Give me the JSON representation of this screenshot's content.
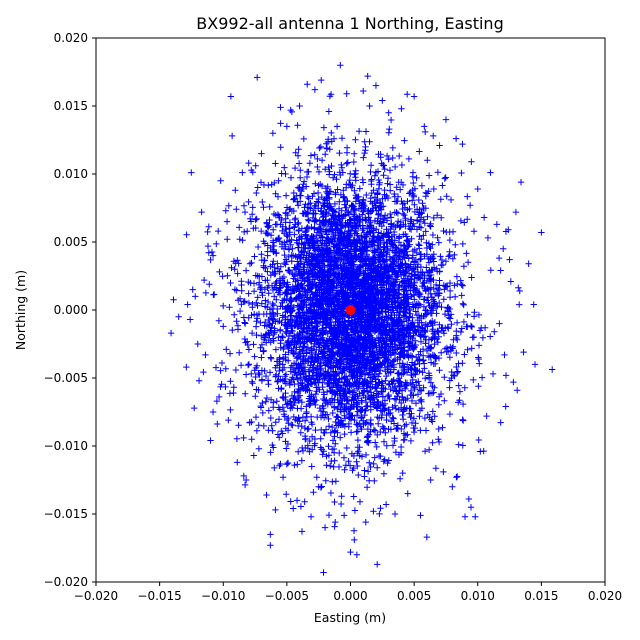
{
  "chart_data": {
    "type": "scatter",
    "title": "BX992-all antenna 1 Northing, Easting",
    "xlabel": "Easting (m)",
    "ylabel": "Northing (m)",
    "xlim": [
      -0.02,
      0.02
    ],
    "ylim": [
      -0.02,
      0.02
    ],
    "xticks": [
      -0.02,
      -0.015,
      -0.01,
      -0.005,
      0.0,
      0.005,
      0.01,
      0.015,
      0.02
    ],
    "yticks": [
      -0.02,
      -0.015,
      -0.01,
      -0.005,
      0.0,
      0.005,
      0.01,
      0.015,
      0.02
    ],
    "xtick_labels": [
      "−0.020",
      "−0.015",
      "−0.010",
      "−0.005",
      "0.000",
      "0.005",
      "0.010",
      "0.015",
      "0.020"
    ],
    "ytick_labels": [
      "−0.020",
      "−0.015",
      "−0.010",
      "−0.005",
      "0.000",
      "0.005",
      "0.010",
      "0.015",
      "0.020"
    ],
    "grid": false,
    "series": [
      {
        "marker": "+",
        "color": "#0000ff",
        "points": [
          [
            -0.0141,
            -0.0017
          ],
          [
            -0.0129,
            -0.0042
          ],
          [
            -0.0128,
            0.0004
          ],
          [
            -0.0124,
            0.0015
          ],
          [
            -0.012,
            -0.0025
          ],
          [
            -0.0117,
            0.0072
          ],
          [
            -0.0115,
            0.0022
          ],
          [
            -0.0114,
            -0.0033
          ],
          [
            -0.011,
            -0.0096
          ],
          [
            -0.0108,
            0.004
          ],
          [
            -0.0105,
            -0.0067
          ],
          [
            -0.0104,
            0.0058
          ],
          [
            -0.0102,
            0.0095
          ],
          [
            -0.01,
            -0.0012
          ],
          [
            -0.0098,
            0.0073
          ],
          [
            -0.0097,
            0.0065
          ],
          [
            -0.0096,
            -0.0081
          ],
          [
            -0.0093,
            0.0128
          ],
          [
            -0.0091,
            0.003
          ],
          [
            -0.0089,
            -0.0112
          ],
          [
            -0.0085,
            0.0101
          ],
          [
            -0.0082,
            -0.0125
          ],
          [
            -0.008,
            0.0108
          ],
          [
            -0.0078,
            -0.0047
          ],
          [
            -0.0074,
            0.0086
          ],
          [
            -0.0072,
            -0.0102
          ],
          [
            -0.007,
            0.0115
          ],
          [
            -0.0066,
            -0.0136
          ],
          [
            -0.0063,
            -0.0165
          ],
          [
            -0.0063,
            -0.0173
          ],
          [
            -0.0061,
            0.013
          ],
          [
            -0.0059,
            -0.0147
          ],
          [
            -0.0055,
            0.0149
          ],
          [
            -0.0053,
            -0.0123
          ],
          [
            -0.005,
            0.0135
          ],
          [
            -0.0047,
            0.0147
          ],
          [
            -0.0045,
            -0.0146
          ],
          [
            -0.0042,
            -0.014
          ],
          [
            -0.004,
            0.015
          ],
          [
            -0.0036,
            -0.0141
          ],
          [
            -0.0034,
            0.0166
          ],
          [
            -0.0031,
            -0.0152
          ],
          [
            -0.0028,
            0.0162
          ],
          [
            -0.0025,
            -0.013
          ],
          [
            -0.0023,
            0.0169
          ],
          [
            -0.002,
            -0.016
          ],
          [
            -0.0017,
            0.0146
          ],
          [
            -0.0012,
            -0.0156
          ],
          [
            -0.0008,
            0.018
          ],
          [
            -0.0005,
            -0.0151
          ],
          [
            -0.0003,
            0.0159
          ],
          [
            0.0,
            -0.0178
          ],
          [
            0.0003,
            -0.0169
          ],
          [
            0.0005,
            -0.018
          ],
          [
            0.001,
            0.0161
          ],
          [
            0.0012,
            -0.0156
          ],
          [
            0.0015,
            0.015
          ],
          [
            0.0018,
            -0.0148
          ],
          [
            0.002,
            0.0165
          ],
          [
            0.0021,
            -0.0187
          ],
          [
            0.0025,
            0.0154
          ],
          [
            0.0028,
            -0.0143
          ],
          [
            0.003,
            0.0145
          ],
          [
            0.0035,
            -0.015
          ],
          [
            0.004,
            0.0148
          ],
          [
            0.0045,
            -0.0135
          ],
          [
            0.005,
            0.0157
          ],
          [
            0.0055,
            -0.0151
          ],
          [
            0.0058,
            0.0135
          ],
          [
            0.006,
            -0.0167
          ],
          [
            0.0063,
            -0.0125
          ],
          [
            0.0065,
            0.0128
          ],
          [
            0.007,
            0.0121
          ],
          [
            0.0073,
            -0.0119
          ],
          [
            0.0075,
            0.014
          ],
          [
            0.008,
            -0.013
          ],
          [
            0.0083,
            0.0126
          ],
          [
            0.0085,
            -0.0099
          ],
          [
            0.0088,
            0.0122
          ],
          [
            0.009,
            -0.0152
          ],
          [
            0.0093,
            -0.0139
          ],
          [
            0.0095,
            0.0109
          ],
          [
            0.0098,
            -0.0152
          ],
          [
            0.01,
            0.0089
          ],
          [
            0.0102,
            -0.0104
          ],
          [
            0.0105,
            0.0068
          ],
          [
            0.0107,
            -0.0078
          ],
          [
            0.011,
            0.0101
          ],
          [
            0.0112,
            -0.0047
          ],
          [
            0.0115,
            0.0063
          ],
          [
            0.0117,
            -0.001
          ],
          [
            0.012,
            0.0045
          ],
          [
            0.0122,
            -0.0071
          ],
          [
            0.0125,
            0.0037
          ],
          [
            0.0126,
            0.0021
          ],
          [
            0.0128,
            -0.0053
          ],
          [
            0.013,
            0.0072
          ],
          [
            0.0131,
            -0.0059
          ],
          [
            0.0133,
            0.0014
          ],
          [
            0.0134,
            0.0094
          ],
          [
            0.0136,
            -0.0031
          ],
          [
            0.014,
            0.0034
          ],
          [
            0.0144,
            0.0004
          ],
          [
            0.0145,
            -0.004
          ],
          [
            0.015,
            0.0057
          ],
          [
            -0.0135,
            -0.0005
          ],
          [
            -0.0126,
            -0.0007
          ],
          [
            -0.0122,
            0.001
          ],
          [
            -0.0119,
            -0.0052
          ],
          [
            -0.0112,
            0.0047
          ],
          [
            -0.0108,
            -0.0075
          ],
          [
            -0.0103,
            0.0028
          ],
          [
            -0.0101,
            -0.0039
          ],
          [
            -0.0094,
            0.0157
          ],
          [
            -0.0092,
            -0.0061
          ],
          [
            -0.0087,
            0.0052
          ],
          [
            -0.0084,
            -0.0094
          ],
          [
            -0.0079,
            0.0034
          ],
          [
            -0.0076,
            -0.0107
          ],
          [
            -0.0068,
            0.0092
          ],
          [
            0.0069,
            -0.0095
          ],
          [
            0.0079,
            0.0081
          ],
          [
            0.0086,
            -0.006
          ],
          [
            0.0094,
            0.0077
          ],
          [
            0.0101,
            -0.0026
          ],
          [
            0.0108,
            0.0053
          ],
          [
            0.0113,
            -0.0016
          ],
          [
            0.0118,
            0.0029
          ],
          [
            0.0121,
            -0.0033
          ],
          [
            0.0124,
            0.0059
          ]
        ]
      }
    ],
    "cloud": {
      "description": "dense cluster of + markers, elliptical, roughly normal",
      "count": 5500,
      "mean": [
        0.0,
        0.0
      ],
      "std": [
        0.0037,
        0.0048
      ]
    },
    "center_marker": {
      "point": [
        0.0,
        0.0
      ],
      "marker": "o",
      "color": "#ff0000"
    }
  }
}
